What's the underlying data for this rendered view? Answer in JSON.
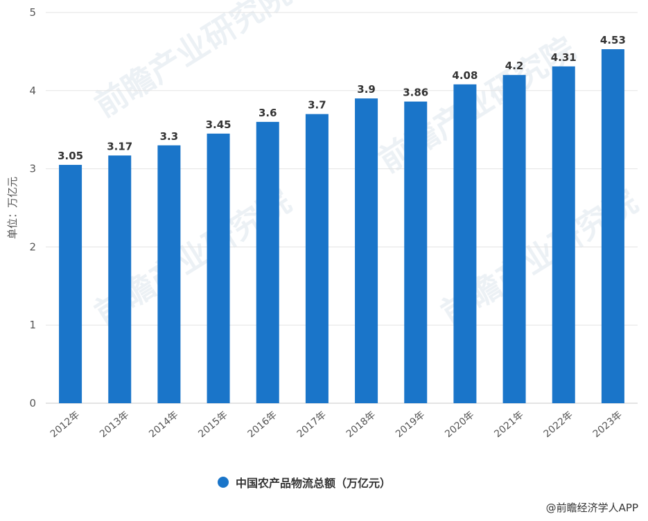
{
  "chart_data": {
    "type": "bar",
    "categories": [
      "2012年",
      "2013年",
      "2014年",
      "2015年",
      "2016年",
      "2017年",
      "2018年",
      "2019年",
      "2020年",
      "2021年",
      "2022年",
      "2023年"
    ],
    "series": [
      {
        "name": "中国农产品物流总额（万亿元）",
        "values": [
          3.05,
          3.17,
          3.3,
          3.45,
          3.6,
          3.7,
          3.9,
          3.86,
          4.08,
          4.2,
          4.31,
          4.53
        ],
        "labels": [
          "3.05",
          "3.17",
          "3.3",
          "3.45",
          "3.6",
          "3.7",
          "3.9",
          "3.86",
          "4.08",
          "4.2",
          "4.31",
          "4.53"
        ]
      }
    ],
    "ylabel": "单位：万亿元",
    "ylim": [
      0,
      5
    ],
    "yticks": [
      "0",
      "1",
      "2",
      "3",
      "4",
      "5"
    ],
    "grid": true,
    "legend_position": "bottom-center",
    "bar_color": "#1a75c9"
  },
  "legend_label": "中国农产品物流总额（万亿元）",
  "source": "@前瞻经济学人APP",
  "watermark": "前瞻产业研究院"
}
